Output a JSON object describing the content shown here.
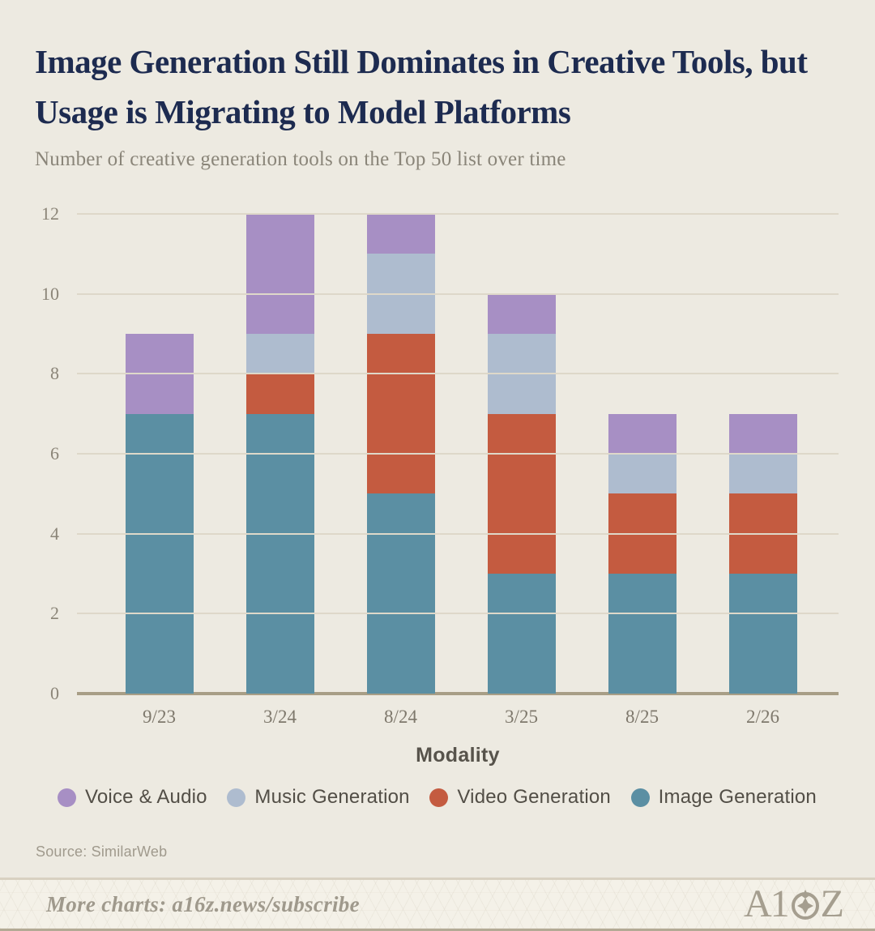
{
  "header": {
    "title": "Image Generation Still Dominates in Creative Tools, but Usage is Migrating to Model Platforms",
    "subtitle": "Number of creative generation tools on the Top 50 list over time"
  },
  "chart_data": {
    "type": "bar",
    "stacked": true,
    "title": "Image Generation Still Dominates in Creative Tools, but Usage is Migrating to Model Platforms",
    "subtitle": "Number of creative generation tools on the Top 50 list over time",
    "categories": [
      "9/23",
      "3/24",
      "8/24",
      "3/25",
      "8/25",
      "2/26"
    ],
    "series": [
      {
        "name": "Image Generation",
        "color": "#5b8fa3",
        "values": [
          7,
          7,
          5,
          3,
          3,
          3
        ]
      },
      {
        "name": "Video Generation",
        "color": "#c45b40",
        "values": [
          0,
          1,
          4,
          4,
          2,
          2
        ]
      },
      {
        "name": "Music Generation",
        "color": "#aebccf",
        "values": [
          0,
          1,
          2,
          2,
          1,
          1
        ]
      },
      {
        "name": "Voice & Audio",
        "color": "#a78fc4",
        "values": [
          2,
          3,
          1,
          1,
          1,
          1
        ]
      }
    ],
    "totals": [
      9,
      12,
      12,
      10,
      7,
      7
    ],
    "xlabel": "Modality",
    "ylabel": "",
    "ylim": [
      0,
      12
    ],
    "yticks": [
      0,
      2,
      4,
      6,
      8,
      10,
      12
    ],
    "grid": true,
    "legend_position": "bottom",
    "legend_order": [
      "Voice & Audio",
      "Music Generation",
      "Video Generation",
      "Image Generation"
    ]
  },
  "xaxis_title": "Modality",
  "source": {
    "label": "Source: SimilarWeb"
  },
  "footer": {
    "more_charts": "More charts: a16z.news/subscribe",
    "logo_text": "A16Z"
  },
  "colors": {
    "background": "#edeae1",
    "title": "#1d2b50",
    "gridline": "#ded8c9",
    "axis_baseline": "#a89e86",
    "footer_background": "#f4f1e8"
  }
}
